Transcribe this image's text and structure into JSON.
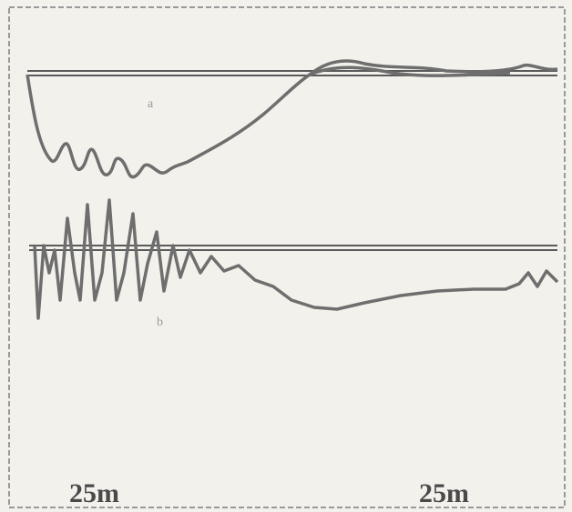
{
  "trace_labels": [
    "a",
    "b"
  ],
  "scale_labels": [
    "25m",
    "25m"
  ]
}
